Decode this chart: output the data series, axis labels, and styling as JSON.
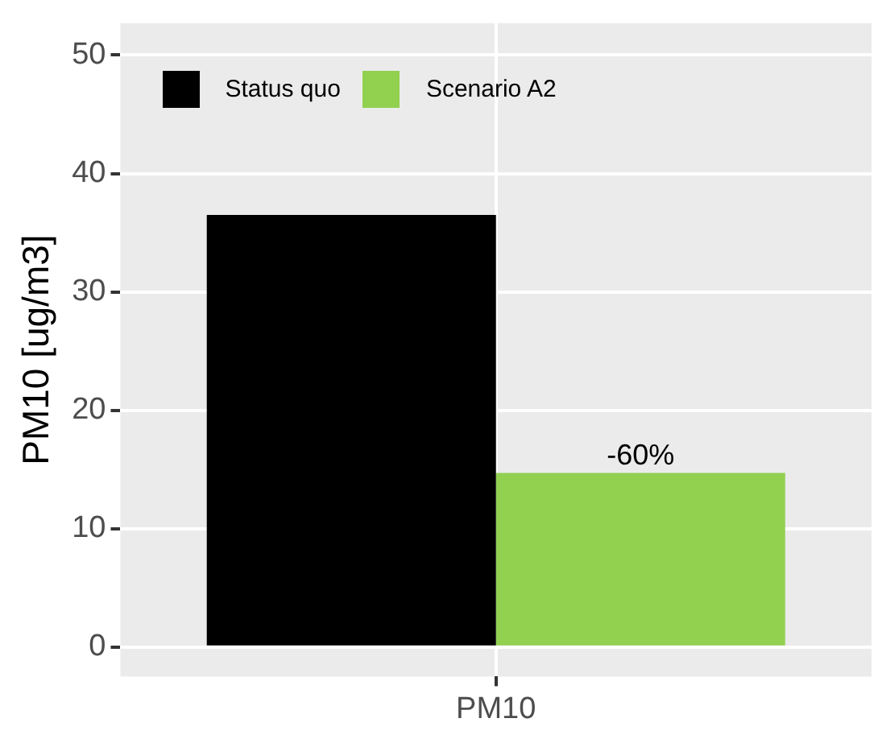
{
  "chart_data": {
    "type": "bar",
    "ylabel": "PM10 [ug/m3]",
    "categories": [
      "PM10"
    ],
    "series": [
      {
        "name": "Status quo",
        "color": "#000000",
        "values": [
          36.5
        ]
      },
      {
        "name": "Scenario A2",
        "color": "#92d050",
        "values": [
          14.7
        ]
      }
    ],
    "ylim": [
      -2.5,
      52.7
    ],
    "yticks": [
      0,
      10,
      20,
      30,
      40,
      50
    ],
    "grid": true,
    "legend": "top left",
    "annotations": [
      "-60%"
    ]
  }
}
